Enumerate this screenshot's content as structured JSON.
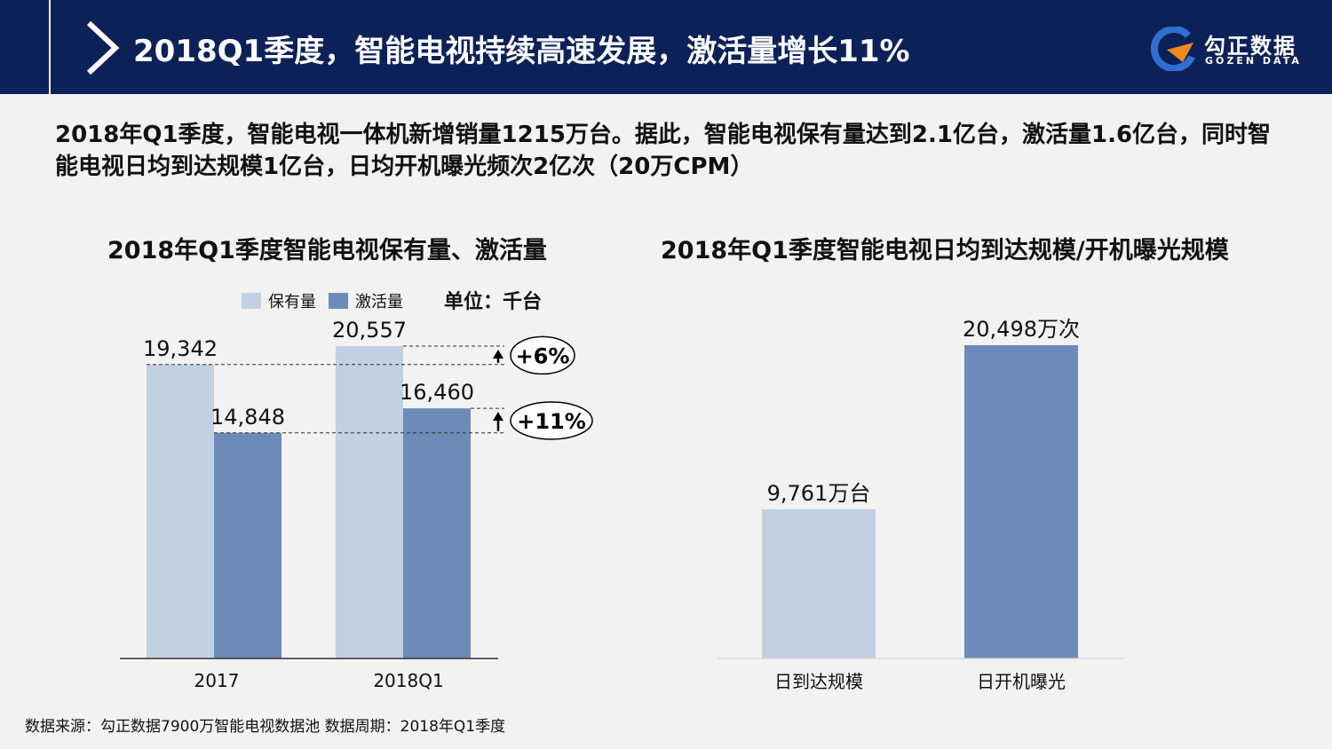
{
  "header": {
    "title": "2018Q1季度，智能电视持续高速发展，激活量增长11%",
    "logo_cn": "勾正数据",
    "logo_en": "GOZEN DATA",
    "icons": {
      "chevron": "chevron-right-icon",
      "logo": "gozen-logo-mark"
    }
  },
  "summary": "2018年Q1季度，智能电视一体机新增销量1215万台。据此，智能电视保有量达到2.1亿台，激活量1.6亿台，同时智能电视日均到达规模1亿台，日均开机曝光频次2亿次（20万CPM）",
  "colors": {
    "header_bg": "#0d2159",
    "light_bar": "#c3cfe2",
    "dark_bar": "#6d8bb8",
    "background": "#f2f2f2"
  },
  "left_chart": {
    "legend_items": [
      "保有量",
      "激活量"
    ],
    "unit": "单位：千台",
    "growth_labels": [
      "+6%",
      "+11%"
    ]
  },
  "footer": {
    "source": "数据来源：勾正数据7900万智能电视数据池  数据周期：2018年Q1季度"
  },
  "chart_data": [
    {
      "type": "bar",
      "title": "2018年Q1季度智能电视保有量、激活量",
      "categories": [
        "2017",
        "2018Q1"
      ],
      "series": [
        {
          "name": "保有量",
          "values": [
            19342,
            20557
          ],
          "labels": [
            "19,342",
            "20,557"
          ],
          "color": "#c3cfe2"
        },
        {
          "name": "激活量",
          "values": [
            14848,
            16460
          ],
          "labels": [
            "14,848",
            "16,460"
          ],
          "color": "#6d8bb8"
        }
      ],
      "ylim": [
        0,
        20557
      ],
      "grid": false,
      "legend": "top",
      "annotations": [
        "+6%",
        "+11%"
      ]
    },
    {
      "type": "bar",
      "title": "2018年Q1季度智能电视日均到达规模/开机曝光规模",
      "categories": [
        "日到达规模",
        "日开机曝光"
      ],
      "values": [
        9761,
        20498
      ],
      "labels": [
        "9,761万台",
        "20,498万次"
      ],
      "colors": [
        "#c3cfe2",
        "#6d8bb8"
      ],
      "ylim": [
        0,
        20498
      ],
      "grid": false
    }
  ]
}
